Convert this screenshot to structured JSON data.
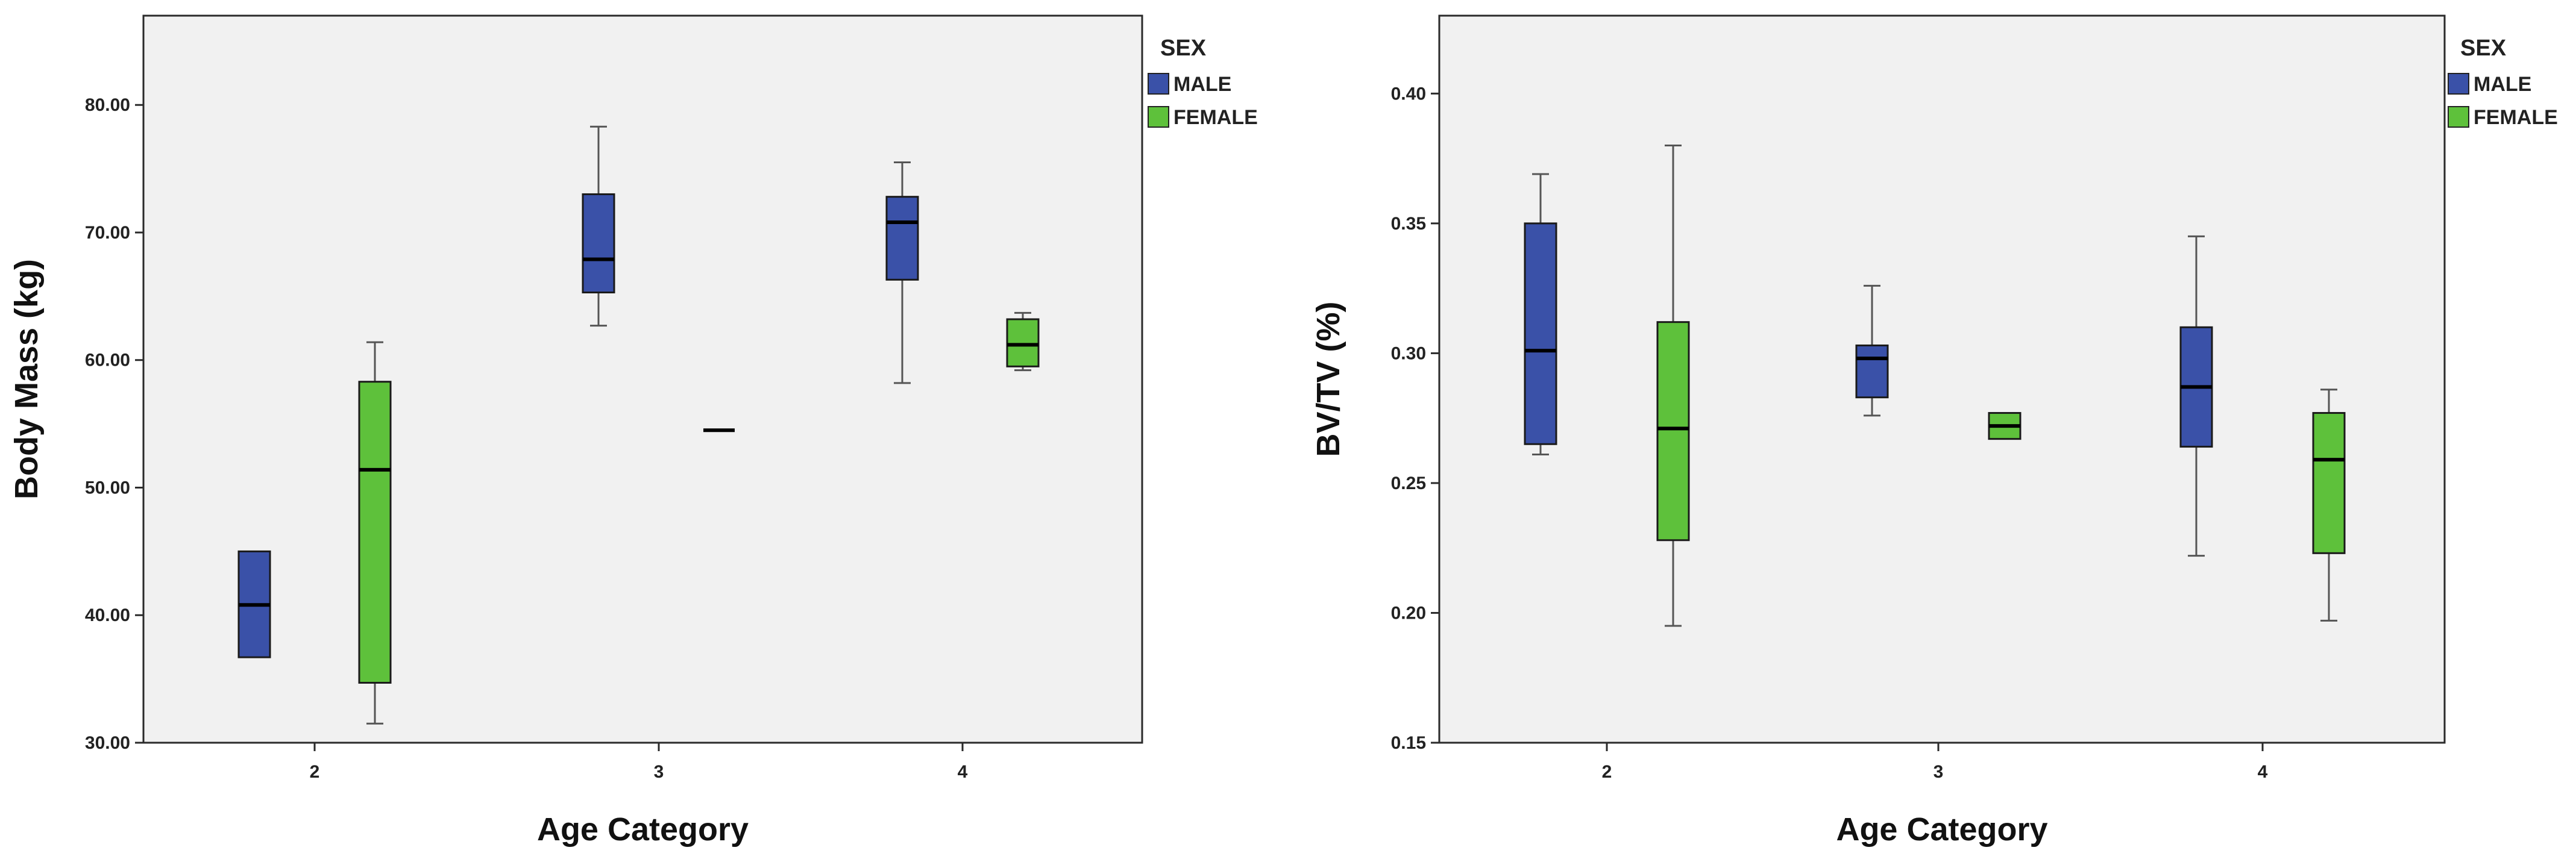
{
  "colors": {
    "male": "#3a51a8",
    "female": "#5ec13b",
    "plot_bg": "#f1f1f1",
    "stroke": "#1a1a1a",
    "whisker": "#555555"
  },
  "chart_data": [
    {
      "type": "boxplot",
      "title": "",
      "xlabel": "Age Category",
      "ylabel": "Body Mass (kg)",
      "ylim": [
        30,
        87
      ],
      "yticks": [
        "30.00",
        "40.00",
        "50.00",
        "60.00",
        "70.00",
        "80.00"
      ],
      "categories": [
        "2",
        "3",
        "4"
      ],
      "legend": {
        "title": "SEX",
        "entries": [
          "MALE",
          "FEMALE"
        ]
      },
      "series": [
        {
          "name": "MALE",
          "boxes": [
            {
              "category": "2",
              "min": 36.7,
              "q1": 36.7,
              "median": 40.8,
              "q3": 45.0,
              "max": 45.0
            },
            {
              "category": "3",
              "min": 62.7,
              "q1": 65.3,
              "median": 67.9,
              "q3": 73.0,
              "max": 78.3
            },
            {
              "category": "4",
              "min": 58.2,
              "q1": 66.3,
              "median": 70.8,
              "q3": 72.8,
              "max": 75.5
            }
          ]
        },
        {
          "name": "FEMALE",
          "boxes": [
            {
              "category": "2",
              "min": 31.5,
              "q1": 34.7,
              "median": 51.4,
              "q3": 58.3,
              "max": 61.4
            },
            {
              "category": "3",
              "min": 54.5,
              "q1": 54.5,
              "median": 54.5,
              "q3": 54.5,
              "max": 54.5
            },
            {
              "category": "4",
              "min": 59.2,
              "q1": 59.5,
              "median": 61.2,
              "q3": 63.2,
              "max": 63.7
            }
          ]
        }
      ]
    },
    {
      "type": "boxplot",
      "title": "",
      "xlabel": "Age Category",
      "ylabel": "BV/TV (%)",
      "ylim": [
        0.15,
        0.43
      ],
      "yticks": [
        "0.15",
        "0.20",
        "0.25",
        "0.30",
        "0.35",
        "0.40"
      ],
      "categories": [
        "2",
        "3",
        "4"
      ],
      "legend": {
        "title": "SEX",
        "entries": [
          "MALE",
          "FEMALE"
        ]
      },
      "series": [
        {
          "name": "MALE",
          "boxes": [
            {
              "category": "2",
              "min": 0.261,
              "q1": 0.265,
              "median": 0.301,
              "q3": 0.35,
              "max": 0.369
            },
            {
              "category": "3",
              "min": 0.276,
              "q1": 0.283,
              "median": 0.298,
              "q3": 0.303,
              "max": 0.326
            },
            {
              "category": "4",
              "min": 0.222,
              "q1": 0.264,
              "median": 0.287,
              "q3": 0.31,
              "max": 0.345
            }
          ]
        },
        {
          "name": "FEMALE",
          "boxes": [
            {
              "category": "2",
              "min": 0.195,
              "q1": 0.228,
              "median": 0.271,
              "q3": 0.312,
              "max": 0.38
            },
            {
              "category": "3",
              "min": 0.267,
              "q1": 0.267,
              "median": 0.272,
              "q3": 0.277,
              "max": 0.277
            },
            {
              "category": "4",
              "min": 0.197,
              "q1": 0.223,
              "median": 0.259,
              "q3": 0.277,
              "max": 0.286
            }
          ]
        }
      ]
    }
  ]
}
